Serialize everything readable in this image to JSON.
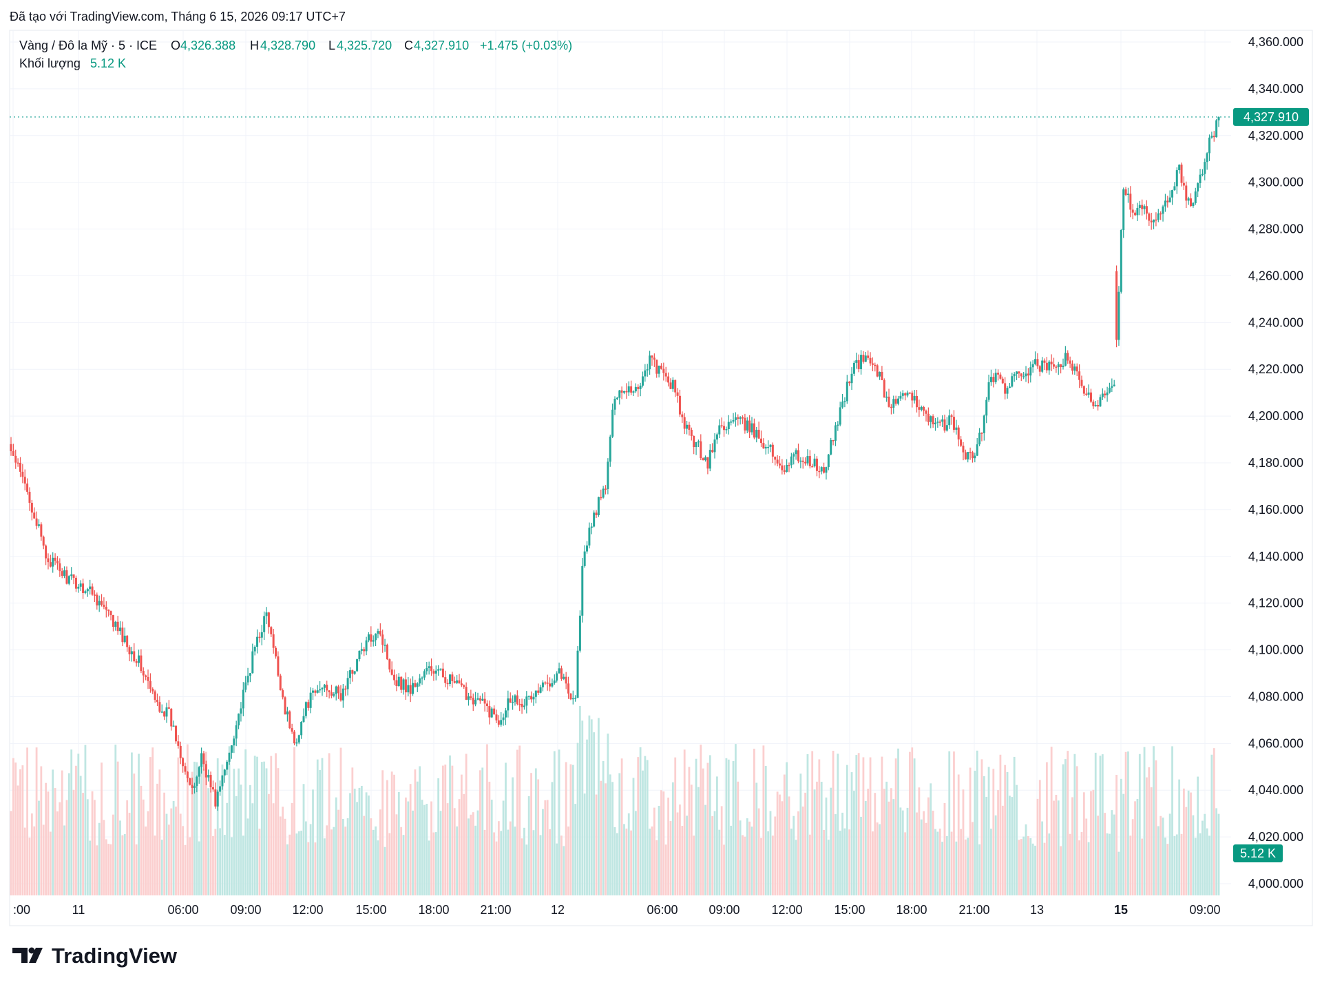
{
  "header": {
    "caption": "Đã tạo với TradingView.com, Tháng 6 15, 2026 09:17 UTC+7"
  },
  "legend": {
    "symbol": "Vàng / Đô la Mỹ · 5 · ICE",
    "o_label": "O",
    "o_value": "4,326.388",
    "h_label": "H",
    "h_value": "4,328.790",
    "l_label": "L",
    "l_value": "4,325.720",
    "c_label": "C",
    "c_value": "4,327.910",
    "change": "+1.475 (+0.03%)",
    "volume_label": "Khối lượng",
    "volume_value": "5.12 K"
  },
  "price_tag": "4,327.910",
  "volume_tag": "5.12 K",
  "footer": {
    "brand": "TradingView"
  },
  "colors": {
    "up": "#26a69a",
    "down": "#ef5350",
    "up_volume": "#bfe6e2",
    "down_volume": "#fbcfcf",
    "grid": "#f0f3fa",
    "text": "#131722",
    "accent_green": "#089981"
  },
  "chart_data": {
    "type": "candlestick",
    "symbol": "Vàng / Đô la Mỹ · 5 · ICE",
    "y_axis": {
      "ylim": [
        3995,
        4365
      ],
      "ticks": [
        "4,000.000",
        "4,020.000",
        "4,040.000",
        "4,060.000",
        "4,080.000",
        "4,100.000",
        "4,120.000",
        "4,140.000",
        "4,160.000",
        "4,180.000",
        "4,200.000",
        "4,220.000",
        "4,240.000",
        "4,260.000",
        "4,280.000",
        "4,300.000",
        "4,320.000",
        "4,340.000",
        "4,360.000"
      ],
      "position": "right"
    },
    "x_axis": {
      "tick_labels": [
        ":00",
        "11",
        "06:00",
        "09:00",
        "12:00",
        "15:00",
        "18:00",
        "21:00",
        "12",
        "06:00",
        "09:00",
        "12:00",
        "15:00",
        "18:00",
        "21:00",
        "13",
        "15",
        "09:00"
      ],
      "bold_labels": [
        "15"
      ]
    },
    "last_price": 4327.91,
    "grid": true,
    "price_path": [
      [
        0,
        4185
      ],
      [
        8,
        4165
      ],
      [
        15,
        4140
      ],
      [
        25,
        4130
      ],
      [
        35,
        4125
      ],
      [
        45,
        4110
      ],
      [
        55,
        4095
      ],
      [
        62,
        4078
      ],
      [
        68,
        4072
      ],
      [
        75,
        4050
      ],
      [
        78,
        4038
      ],
      [
        82,
        4055
      ],
      [
        88,
        4035
      ],
      [
        92,
        4048
      ],
      [
        96,
        4065
      ],
      [
        100,
        4080
      ],
      [
        106,
        4105
      ],
      [
        110,
        4115
      ],
      [
        114,
        4095
      ],
      [
        118,
        4075
      ],
      [
        122,
        4060
      ],
      [
        128,
        4078
      ],
      [
        135,
        4085
      ],
      [
        142,
        4080
      ],
      [
        150,
        4098
      ],
      [
        158,
        4110
      ],
      [
        165,
        4088
      ],
      [
        172,
        4083
      ],
      [
        180,
        4092
      ],
      [
        188,
        4088
      ],
      [
        195,
        4082
      ],
      [
        203,
        4077
      ],
      [
        210,
        4070
      ],
      [
        215,
        4080
      ],
      [
        222,
        4078
      ],
      [
        230,
        4085
      ],
      [
        236,
        4092
      ],
      [
        240,
        4082
      ],
      [
        243,
        4080
      ],
      [
        246,
        4135
      ],
      [
        250,
        4155
      ],
      [
        256,
        4170
      ],
      [
        260,
        4210
      ],
      [
        265,
        4212
      ],
      [
        270,
        4212
      ],
      [
        275,
        4225
      ],
      [
        280,
        4218
      ],
      [
        285,
        4213
      ],
      [
        290,
        4195
      ],
      [
        295,
        4188
      ],
      [
        300,
        4180
      ],
      [
        305,
        4195
      ],
      [
        312,
        4198
      ],
      [
        318,
        4195
      ],
      [
        325,
        4188
      ],
      [
        332,
        4178
      ],
      [
        338,
        4183
      ],
      [
        345,
        4180
      ],
      [
        350,
        4175
      ],
      [
        355,
        4195
      ],
      [
        362,
        4220
      ],
      [
        368,
        4225
      ],
      [
        372,
        4222
      ],
      [
        378,
        4205
      ],
      [
        385,
        4208
      ],
      [
        392,
        4205
      ],
      [
        398,
        4195
      ],
      [
        405,
        4198
      ],
      [
        410,
        4185
      ],
      [
        415,
        4182
      ],
      [
        418,
        4195
      ],
      [
        422,
        4218
      ],
      [
        428,
        4212
      ],
      [
        435,
        4218
      ],
      [
        442,
        4222
      ],
      [
        448,
        4220
      ],
      [
        455,
        4225
      ],
      [
        462,
        4210
      ],
      [
        467,
        4205
      ],
      [
        470,
        4210
      ],
      [
        475,
        4215
      ],
      [
        477,
        4255
      ],
      [
        479,
        4300
      ],
      [
        483,
        4285
      ],
      [
        487,
        4290
      ],
      [
        490,
        4282
      ],
      [
        495,
        4285
      ],
      [
        500,
        4298
      ],
      [
        503,
        4305
      ],
      [
        506,
        4295
      ],
      [
        509,
        4290
      ],
      [
        512,
        4302
      ],
      [
        515,
        4315
      ],
      [
        518,
        4320
      ],
      [
        520,
        4327.91
      ]
    ],
    "gaps_after_index": [
      475
    ]
  }
}
